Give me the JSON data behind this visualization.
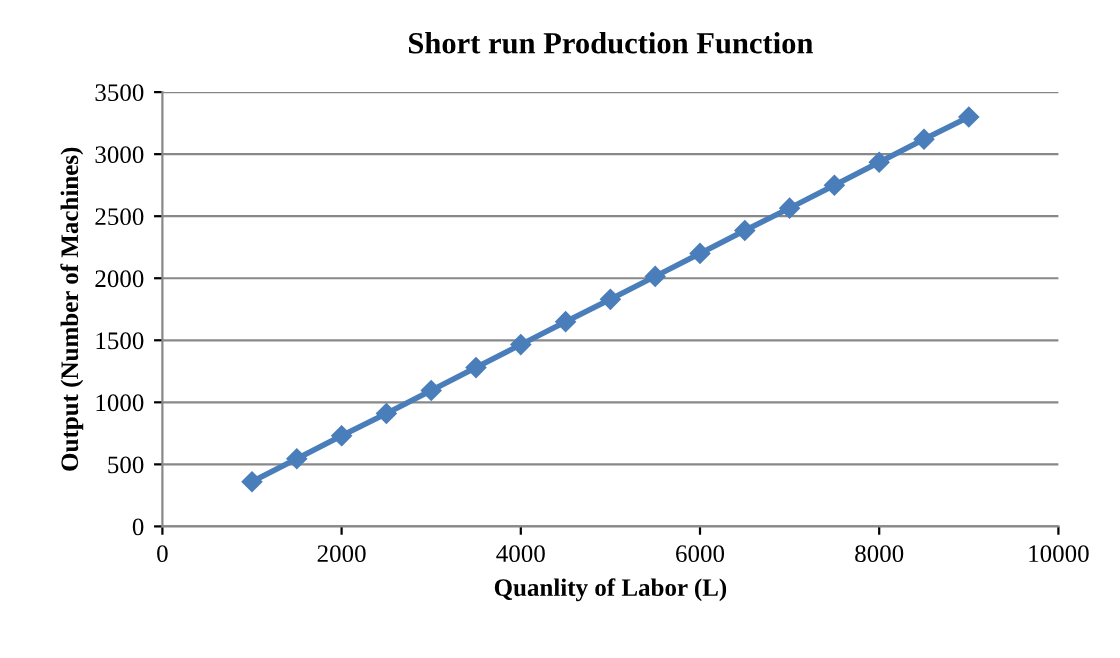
{
  "chart_data": {
    "type": "line",
    "title": "Short run Production Function",
    "xlabel": "Quanlity of Labor (L)",
    "ylabel": "Output (Number of Machines)",
    "x": [
      1000,
      1500,
      2000,
      2500,
      3000,
      3500,
      4000,
      4500,
      5000,
      5500,
      6000,
      6500,
      7000,
      7500,
      8000,
      8500,
      9000
    ],
    "series": [
      {
        "color": "#4a7ebb",
        "values": [
          360,
          545,
          730,
          910,
          1095,
          1280,
          1465,
          1650,
          1830,
          2015,
          2200,
          2385,
          2565,
          2750,
          2935,
          3120,
          3300
        ]
      }
    ],
    "xlim": [
      0,
      10000
    ],
    "xticks": [
      0,
      2000,
      4000,
      6000,
      8000,
      10000
    ],
    "ylim": [
      0,
      3500
    ],
    "yticks": [
      0,
      500,
      1000,
      1500,
      2000,
      2500,
      3000,
      3500
    ],
    "grid": "y",
    "marker": "diamond",
    "line_style": "solid",
    "legend": false
  }
}
